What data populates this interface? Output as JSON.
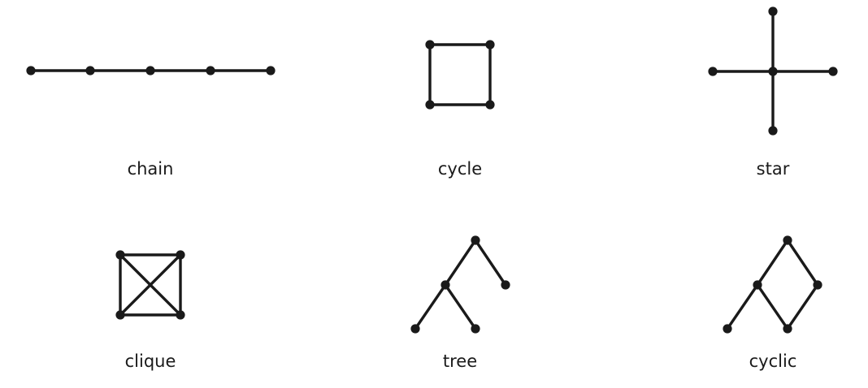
{
  "graphs": [
    {
      "id": "chain",
      "label": "chain",
      "nodes": [
        "a",
        "b",
        "c",
        "d",
        "e"
      ],
      "edges": [
        [
          "a",
          "b"
        ],
        [
          "b",
          "c"
        ],
        [
          "c",
          "d"
        ],
        [
          "d",
          "e"
        ]
      ]
    },
    {
      "id": "cycle",
      "label": "cycle",
      "nodes": [
        "a",
        "b",
        "c",
        "d"
      ],
      "edges": [
        [
          "a",
          "b"
        ],
        [
          "b",
          "c"
        ],
        [
          "c",
          "d"
        ],
        [
          "d",
          "a"
        ]
      ]
    },
    {
      "id": "star",
      "label": "star",
      "nodes": [
        "hub",
        "top",
        "bottom",
        "left",
        "right"
      ],
      "edges": [
        [
          "hub",
          "top"
        ],
        [
          "hub",
          "bottom"
        ],
        [
          "hub",
          "left"
        ],
        [
          "hub",
          "right"
        ]
      ]
    },
    {
      "id": "clique",
      "label": "clique",
      "nodes": [
        "a",
        "b",
        "c",
        "d"
      ],
      "edges": [
        [
          "a",
          "b"
        ],
        [
          "b",
          "c"
        ],
        [
          "c",
          "d"
        ],
        [
          "d",
          "a"
        ],
        [
          "a",
          "c"
        ],
        [
          "b",
          "d"
        ]
      ]
    },
    {
      "id": "tree",
      "label": "tree",
      "nodes": [
        "root",
        "mid",
        "right",
        "leaf1",
        "leaf2"
      ],
      "edges": [
        [
          "root",
          "mid"
        ],
        [
          "root",
          "right"
        ],
        [
          "mid",
          "leaf1"
        ],
        [
          "mid",
          "leaf2"
        ]
      ]
    },
    {
      "id": "cyclic",
      "label": "cyclic",
      "nodes": [
        "top",
        "left",
        "right",
        "bottom",
        "tail"
      ],
      "edges": [
        [
          "top",
          "left"
        ],
        [
          "top",
          "right"
        ],
        [
          "left",
          "bottom"
        ],
        [
          "right",
          "bottom"
        ],
        [
          "left",
          "tail"
        ]
      ]
    }
  ]
}
